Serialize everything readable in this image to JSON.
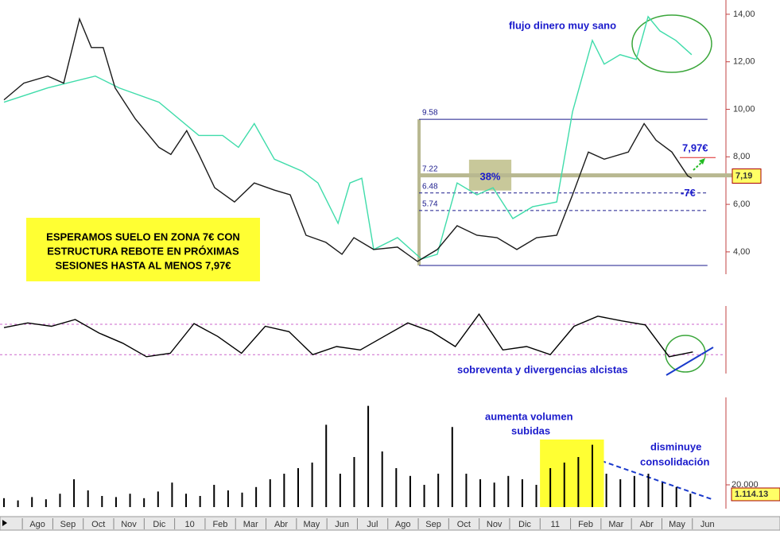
{
  "chart_data": [
    {
      "type": "line",
      "x": [
        -0.6,
        0.05,
        0.84,
        1.36,
        1.88,
        2.27,
        2.66,
        3.05,
        3.71,
        4.49,
        4.88,
        5.4,
        5.8,
        6.32,
        6.97,
        7.62,
        8.28,
        8.8,
        9.32,
        9.97,
        10.5,
        10.89,
        11.54,
        12.32,
        12.98,
        13.63,
        14.28,
        14.93,
        15.59,
        16.24,
        16.89,
        17.55,
        18.07,
        18.59,
        19.11,
        19.9,
        20.42,
        20.81,
        21.33,
        21.85,
        21.98
      ],
      "series": [
        {
          "color": "#1a1a1a",
          "values": [
            10.4,
            11.1,
            11.4,
            11.1,
            13.8,
            12.6,
            12.6,
            10.9,
            9.6,
            8.4,
            8.1,
            9.1,
            8.1,
            6.7,
            6.1,
            6.9,
            6.6,
            6.4,
            4.7,
            4.4,
            3.9,
            4.6,
            4.1,
            4.2,
            3.6,
            4.1,
            5.1,
            4.7,
            4.6,
            4.1,
            4.6,
            4.7,
            6.4,
            8.2,
            7.9,
            8.2,
            9.4,
            8.7,
            8.2,
            7.2,
            7.1
          ]
        }
      ],
      "flow": {
        "color": "#3fdcaa",
        "x": [
          -0.6,
          0.84,
          2.4,
          3.18,
          4.49,
          5.8,
          6.58,
          7.1,
          7.62,
          8.28,
          9.19,
          9.71,
          10.37,
          10.76,
          11.15,
          11.54,
          12.32,
          13.11,
          13.63,
          14.28,
          14.93,
          15.46,
          16.11,
          16.76,
          17.55,
          18.07,
          18.72,
          19.11,
          19.63,
          20.16,
          20.55,
          20.94,
          21.46,
          21.98
        ],
        "values": [
          10.3,
          10.9,
          11.4,
          10.9,
          10.3,
          8.9,
          8.9,
          8.4,
          9.4,
          7.9,
          7.4,
          6.9,
          5.2,
          6.9,
          7.1,
          4.1,
          4.6,
          3.7,
          3.9,
          6.9,
          6.4,
          6.7,
          5.4,
          5.9,
          6.1,
          9.9,
          12.9,
          11.9,
          12.3,
          12.1,
          13.9,
          13.3,
          12.9,
          12.3
        ]
      },
      "xlim": [
        -0.73,
        23.08
      ],
      "ylim": [
        3.06,
        14.6
      ],
      "yticks": [
        {
          "value": 4,
          "label": "4,00"
        },
        {
          "value": 6,
          "label": "6,00"
        },
        {
          "value": 8,
          "label": "8,00"
        },
        {
          "value": 10,
          "label": "10,00"
        },
        {
          "value": 12,
          "label": "12,00"
        },
        {
          "value": 14,
          "label": "14,00"
        }
      ],
      "fib_x": [
        13.03,
        22.5
      ],
      "fib_levels": [
        {
          "value": 9.58,
          "label": "9.58"
        },
        {
          "value": 7.22,
          "label": "7.22"
        },
        {
          "value": 6.48,
          "label": "6.48"
        },
        {
          "value": 5.74,
          "label": "5.74"
        }
      ],
      "fib_base": 3.43,
      "highlight": {
        "x": [
          14.67,
          16.06
        ],
        "y": [
          6.58,
          7.88
        ],
        "label": "38%"
      },
      "target": {
        "value": 7.97,
        "label": "7,97€"
      },
      "support_label": "-7€",
      "last": {
        "value": 7.19,
        "label": "7,19"
      },
      "annotations": [
        "flujo dinero muy sano",
        "ESPERAMOS SUELO EN ZONA 7€  CON",
        "ESTRUCTURA REBOTE EN PRÓXIMAS",
        "SESIONES HASTA AL MENOS 7,97€"
      ]
    },
    {
      "type": "line",
      "x": [
        -0.6,
        0.18,
        0.96,
        1.74,
        2.52,
        3.3,
        4.08,
        4.86,
        5.64,
        6.42,
        7.2,
        7.98,
        8.76,
        9.54,
        10.32,
        11.1,
        11.88,
        12.66,
        13.44,
        14.22,
        15.0,
        15.78,
        16.56,
        17.34,
        18.12,
        18.9,
        19.68,
        20.46,
        21.24,
        22.02
      ],
      "series": [
        {
          "color": "#000000",
          "values": [
            68,
            75,
            70,
            80,
            60,
            45,
            25,
            30,
            74,
            55,
            30,
            70,
            62,
            28,
            40,
            35,
            55,
            75,
            62,
            40,
            88,
            35,
            40,
            28,
            70,
            85,
            78,
            72,
            25,
            32
          ]
        }
      ],
      "xlim": [
        -0.73,
        23.08
      ],
      "ylim": [
        0,
        100
      ],
      "levels": [
        73,
        28
      ],
      "annotations": [
        "sobreventa y divergencias alcistas"
      ]
    },
    {
      "type": "bar",
      "x": [
        -0.6,
        -0.14,
        0.32,
        0.78,
        1.24,
        1.7,
        2.16,
        2.62,
        3.08,
        3.54,
        4.0,
        4.46,
        4.92,
        5.38,
        5.84,
        6.3,
        6.76,
        7.22,
        7.68,
        8.14,
        8.6,
        9.06,
        9.52,
        9.98,
        10.44,
        10.9,
        11.36,
        11.82,
        12.28,
        12.74,
        13.2,
        13.66,
        14.12,
        14.58,
        15.04,
        15.5,
        15.96,
        16.42,
        16.88,
        17.34,
        17.8,
        18.26,
        18.72,
        19.18,
        19.64,
        20.1,
        20.56,
        21.02,
        21.48,
        21.94
      ],
      "values": [
        8000,
        6000,
        9000,
        7000,
        12000,
        25000,
        15000,
        10000,
        9000,
        12000,
        8000,
        14000,
        22000,
        12000,
        10000,
        20000,
        15000,
        13000,
        18000,
        25000,
        30000,
        35000,
        40000,
        74000,
        30000,
        45000,
        91000,
        50000,
        35000,
        28000,
        20000,
        30000,
        72000,
        30000,
        25000,
        22000,
        28000,
        25000,
        20000,
        35000,
        40000,
        45000,
        56000,
        30000,
        25000,
        28000,
        30000,
        22000,
        18000,
        12000
      ],
      "color": "#000000",
      "xlim": [
        -0.73,
        23.08
      ],
      "ylim": [
        0,
        98600
      ],
      "yticks": [
        {
          "value": 20000,
          "label": "20.000"
        }
      ],
      "highlight_x": [
        17.0,
        19.1
      ],
      "last_label": "1.114.13",
      "annotations": [
        "aumenta volumen",
        "subidas",
        "disminuye",
        "consolidación"
      ],
      "xticks": [
        {
          "value": 0.5,
          "label": "Ago"
        },
        {
          "value": 1.5,
          "label": "Sep"
        },
        {
          "value": 2.5,
          "label": "Oct"
        },
        {
          "value": 3.5,
          "label": "Nov"
        },
        {
          "value": 4.5,
          "label": "Dic"
        },
        {
          "value": 5.5,
          "label": "10"
        },
        {
          "value": 6.5,
          "label": "Feb"
        },
        {
          "value": 7.5,
          "label": "Mar"
        },
        {
          "value": 8.5,
          "label": "Abr"
        },
        {
          "value": 9.5,
          "label": "May"
        },
        {
          "value": 10.5,
          "label": "Jun"
        },
        {
          "value": 11.5,
          "label": "Jul"
        },
        {
          "value": 12.5,
          "label": "Ago"
        },
        {
          "value": 13.5,
          "label": "Sep"
        },
        {
          "value": 14.5,
          "label": "Oct"
        },
        {
          "value": 15.5,
          "label": "Nov"
        },
        {
          "value": 16.5,
          "label": "Dic"
        },
        {
          "value": 17.5,
          "label": "11"
        },
        {
          "value": 18.5,
          "label": "Feb"
        },
        {
          "value": 19.5,
          "label": "Mar"
        },
        {
          "value": 20.5,
          "label": "Abr"
        },
        {
          "value": 21.5,
          "label": "May"
        },
        {
          "value": 22.5,
          "label": "Jun"
        }
      ]
    }
  ]
}
